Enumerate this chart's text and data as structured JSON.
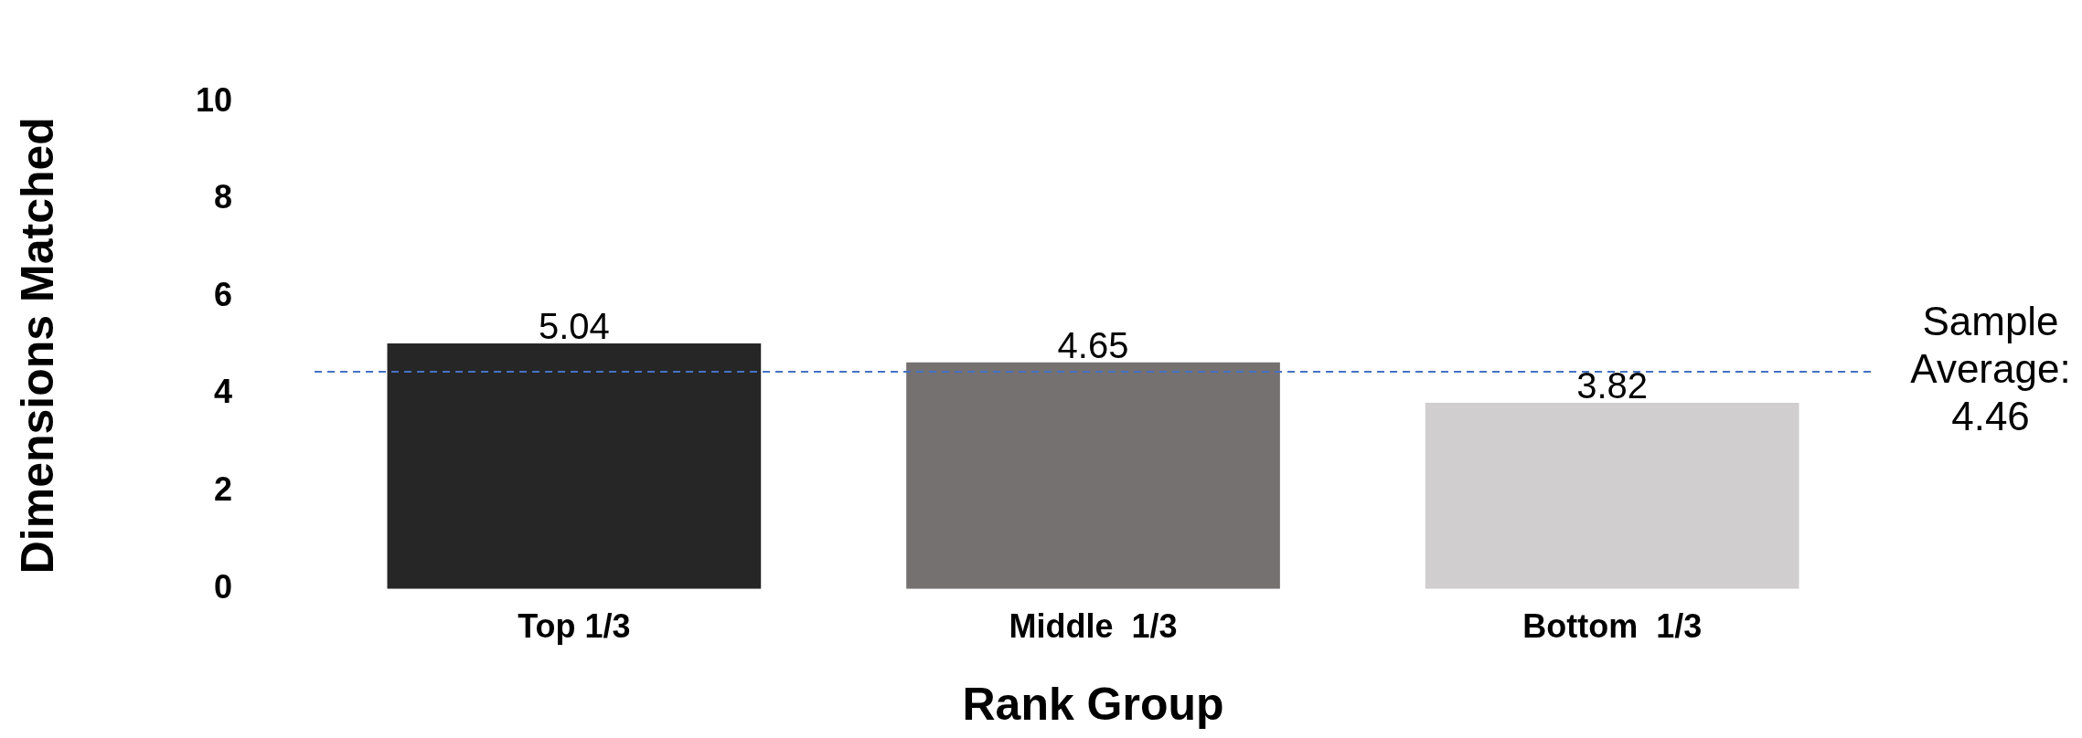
{
  "chart_data": {
    "type": "bar",
    "xlabel": "Rank Group",
    "ylabel": "Dimensions Matched",
    "categories": [
      "Top 1/3",
      "Middle  1/3",
      "Bottom  1/3"
    ],
    "values": [
      5.04,
      4.65,
      3.82
    ],
    "colors": [
      "#262626",
      "#757171",
      "#d0cece"
    ],
    "ylim": [
      0,
      10
    ],
    "yticks": [
      0,
      2,
      4,
      6,
      8,
      10
    ],
    "grid": false,
    "legend": false,
    "data_labels": true,
    "ref_lines": [
      {
        "axis": "y",
        "value": 4.46,
        "label": "Sample Average: 4.46",
        "color": "#4472c4",
        "line_style": "dashed"
      }
    ]
  }
}
